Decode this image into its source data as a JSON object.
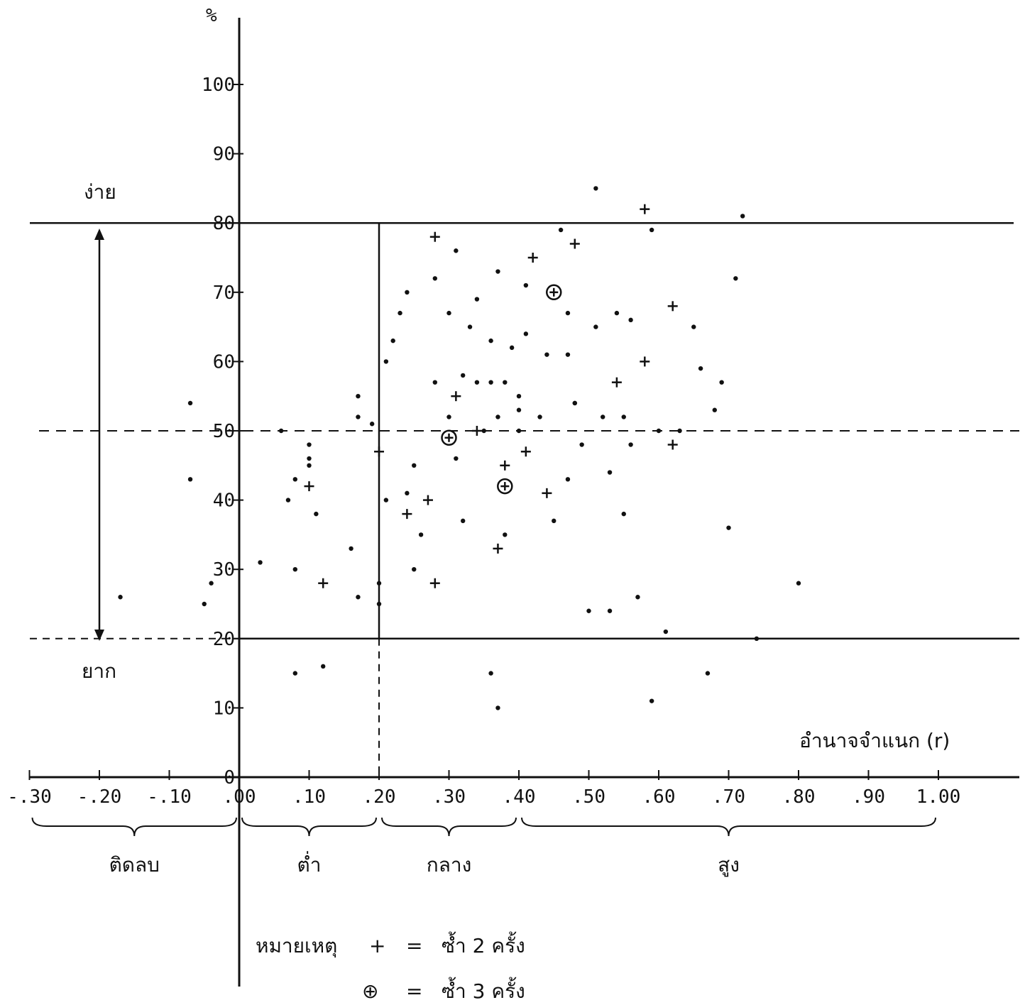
{
  "chart_data": {
    "type": "scatter",
    "ylabel": "%",
    "xlabel": "อำนาจจำแนก (r)",
    "xlim": [
      -0.3,
      1.0
    ],
    "ylim": [
      0,
      100
    ],
    "x_ticks": [
      "-.30",
      "-.20",
      "-.10",
      ".00",
      ".10",
      ".20",
      ".30",
      ".40",
      ".50",
      ".60",
      ".70",
      ".80",
      ".90",
      "1.00"
    ],
    "y_ticks": [
      "0",
      "10",
      "20",
      "30",
      "40",
      "50",
      "60",
      "70",
      "80",
      "90",
      "100"
    ],
    "y_regions": {
      "easy_label": "ง่าย",
      "hard_label": "ยาก",
      "easy_threshold": 80,
      "middle_threshold": 50,
      "hard_threshold": 20
    },
    "x_groups": [
      {
        "label": "ติดลบ",
        "from": -0.3,
        "to": 0.0
      },
      {
        "label": "ต่ำ",
        "from": 0.0,
        "to": 0.2
      },
      {
        "label": "กลาง",
        "from": 0.2,
        "to": 0.4
      },
      {
        "label": "สูง",
        "from": 0.4,
        "to": 1.0
      }
    ],
    "legend": {
      "title": "หมายเหตุ",
      "items": [
        {
          "symbol": "+",
          "equals": "=",
          "text": "ซ้ำ 2 ครั้ง"
        },
        {
          "symbol": "⊕",
          "equals": "=",
          "text": "ซ้ำ 3 ครั้ง"
        }
      ]
    },
    "series": [
      {
        "points_single": [
          [
            -0.17,
            26
          ],
          [
            -0.07,
            54
          ],
          [
            -0.07,
            43
          ],
          [
            -0.05,
            25
          ],
          [
            -0.04,
            28
          ],
          [
            0.03,
            31
          ],
          [
            0.06,
            50
          ],
          [
            0.07,
            40
          ],
          [
            0.08,
            43
          ],
          [
            0.08,
            15
          ],
          [
            0.08,
            30
          ],
          [
            0.1,
            48
          ],
          [
            0.1,
            45
          ],
          [
            0.1,
            46
          ],
          [
            0.11,
            38
          ],
          [
            0.12,
            16
          ],
          [
            0.16,
            33
          ],
          [
            0.17,
            26
          ],
          [
            0.17,
            55
          ],
          [
            0.17,
            52
          ],
          [
            0.19,
            51
          ],
          [
            0.2,
            28
          ],
          [
            0.2,
            25
          ],
          [
            0.21,
            40
          ],
          [
            0.21,
            60
          ],
          [
            0.22,
            63
          ],
          [
            0.23,
            67
          ],
          [
            0.24,
            70
          ],
          [
            0.24,
            41
          ],
          [
            0.25,
            30
          ],
          [
            0.25,
            45
          ],
          [
            0.26,
            35
          ],
          [
            0.28,
            72
          ],
          [
            0.28,
            57
          ],
          [
            0.3,
            67
          ],
          [
            0.3,
            52
          ],
          [
            0.31,
            76
          ],
          [
            0.31,
            46
          ],
          [
            0.32,
            58
          ],
          [
            0.32,
            37
          ],
          [
            0.33,
            65
          ],
          [
            0.34,
            69
          ],
          [
            0.34,
            57
          ],
          [
            0.35,
            50
          ],
          [
            0.36,
            15
          ],
          [
            0.36,
            63
          ],
          [
            0.36,
            57
          ],
          [
            0.37,
            73
          ],
          [
            0.37,
            10
          ],
          [
            0.37,
            52
          ],
          [
            0.38,
            35
          ],
          [
            0.38,
            57
          ],
          [
            0.39,
            62
          ],
          [
            0.4,
            53
          ],
          [
            0.4,
            50
          ],
          [
            0.4,
            55
          ],
          [
            0.41,
            71
          ],
          [
            0.41,
            64
          ],
          [
            0.43,
            52
          ],
          [
            0.44,
            61
          ],
          [
            0.45,
            37
          ],
          [
            0.46,
            79
          ],
          [
            0.47,
            67
          ],
          [
            0.47,
            61
          ],
          [
            0.47,
            43
          ],
          [
            0.48,
            54
          ],
          [
            0.48,
            54
          ],
          [
            0.49,
            48
          ],
          [
            0.5,
            24
          ],
          [
            0.51,
            85
          ],
          [
            0.51,
            65
          ],
          [
            0.52,
            52
          ],
          [
            0.53,
            24
          ],
          [
            0.53,
            44
          ],
          [
            0.54,
            67
          ],
          [
            0.55,
            38
          ],
          [
            0.55,
            52
          ],
          [
            0.56,
            48
          ],
          [
            0.56,
            66
          ],
          [
            0.57,
            26
          ],
          [
            0.59,
            11
          ],
          [
            0.59,
            79
          ],
          [
            0.6,
            50
          ],
          [
            0.61,
            21
          ],
          [
            0.63,
            50
          ],
          [
            0.65,
            65
          ],
          [
            0.66,
            59
          ],
          [
            0.67,
            15
          ],
          [
            0.68,
            53
          ],
          [
            0.69,
            57
          ],
          [
            0.7,
            36
          ],
          [
            0.71,
            72
          ],
          [
            0.72,
            81
          ],
          [
            0.74,
            20
          ],
          [
            0.8,
            28
          ]
        ],
        "points_double": [
          [
            0.1,
            42
          ],
          [
            0.12,
            28
          ],
          [
            0.2,
            47
          ],
          [
            0.24,
            38
          ],
          [
            0.27,
            40
          ],
          [
            0.28,
            78
          ],
          [
            0.28,
            28
          ],
          [
            0.31,
            55
          ],
          [
            0.34,
            50
          ],
          [
            0.37,
            33
          ],
          [
            0.38,
            45
          ],
          [
            0.41,
            47
          ],
          [
            0.42,
            75
          ],
          [
            0.44,
            41
          ],
          [
            0.48,
            77
          ],
          [
            0.54,
            57
          ],
          [
            0.58,
            82
          ],
          [
            0.58,
            60
          ],
          [
            0.62,
            68
          ],
          [
            0.62,
            48
          ]
        ],
        "points_triple": [
          [
            0.45,
            70
          ],
          [
            0.3,
            49
          ],
          [
            0.38,
            42
          ]
        ]
      }
    ]
  }
}
